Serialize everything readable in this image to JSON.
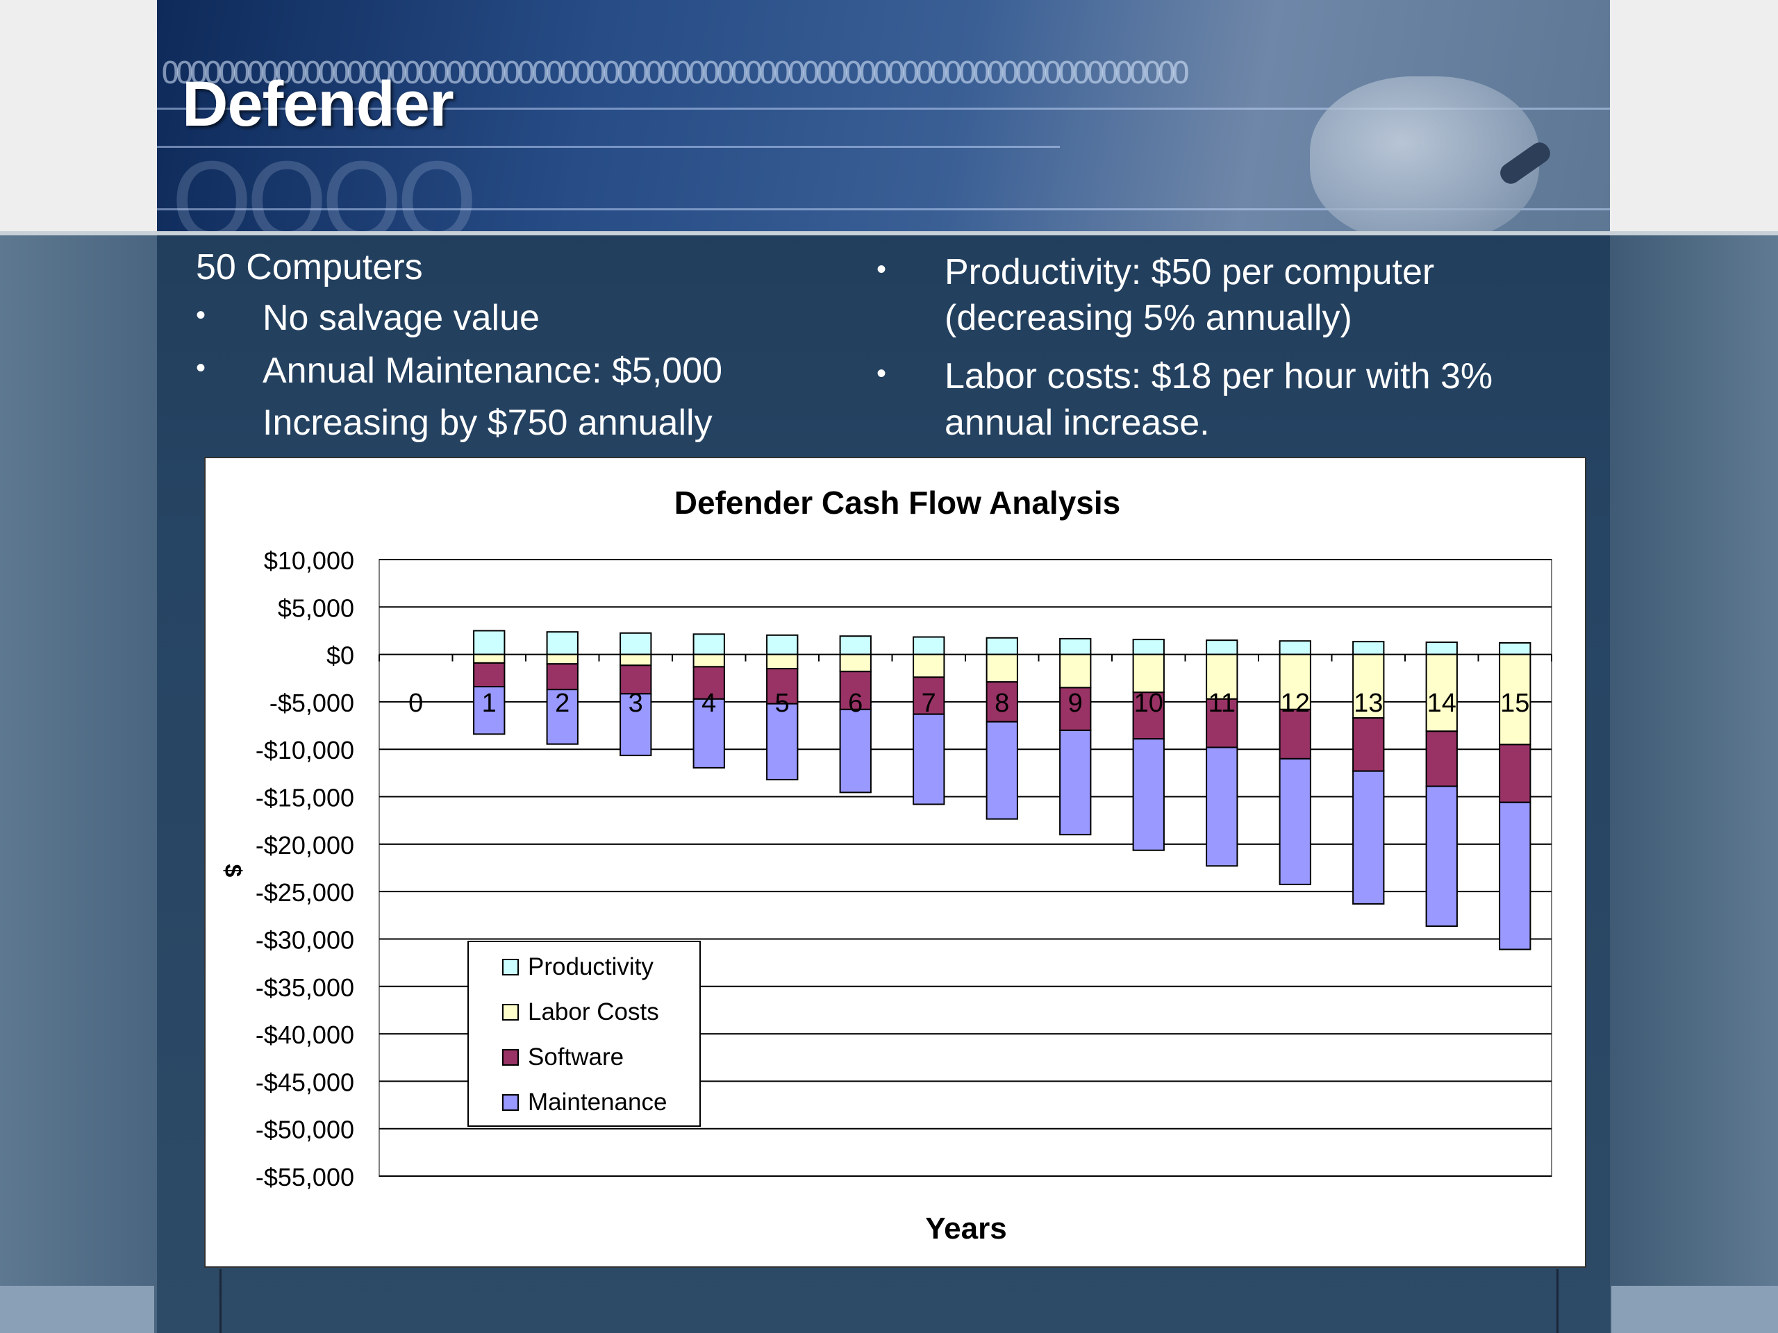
{
  "slide": {
    "title": "Defender",
    "left_heading": "50 Computers",
    "left_bullets": [
      "No salvage value",
      "Annual Maintenance: $5,000",
      "Increasing by $750 annually"
    ],
    "right_bullets": [
      [
        "Productivity: $50 per computer",
        "(decreasing 5% annually)"
      ],
      [
        "Labor costs: $18 per hour with 3%",
        "annual increase."
      ]
    ],
    "bullet_glyph": "•"
  },
  "chart_data": {
    "type": "bar",
    "stacked": true,
    "title": "Defender Cash Flow Analysis",
    "xlabel": "Years",
    "ylabel": "$",
    "ylim": [
      -55000,
      10000
    ],
    "yticks": [
      10000,
      5000,
      0,
      -5000,
      -10000,
      -15000,
      -20000,
      -25000,
      -30000,
      -35000,
      -40000,
      -45000,
      -50000,
      -55000
    ],
    "ytick_labels": [
      "$10,000",
      "$5,000",
      "$0",
      "-$5,000",
      "-$10,000",
      "-$15,000",
      "-$20,000",
      "-$25,000",
      "-$30,000",
      "-$35,000",
      "-$40,000",
      "-$45,000",
      "-$50,000",
      "-$55,000"
    ],
    "categories": [
      "0",
      "1",
      "2",
      "3",
      "4",
      "5",
      "6",
      "7",
      "8",
      "9",
      "10",
      "11",
      "12",
      "13",
      "14",
      "15"
    ],
    "grid": true,
    "legend_position": "bottom-left",
    "series": [
      {
        "name": "Productivity",
        "color": "#ccffff",
        "values": [
          0,
          2500,
          2375,
          2256,
          2143,
          2036,
          1934,
          1838,
          1746,
          1658,
          1576,
          1497,
          1422,
          1351,
          1283,
          1219
        ]
      },
      {
        "name": "Labor Costs",
        "color": "#ffffcc",
        "values": [
          0,
          -900,
          -1000,
          -1150,
          -1300,
          -1500,
          -1800,
          -2400,
          -2900,
          -3500,
          -4000,
          -4700,
          -5800,
          -6700,
          -8100,
          -9500
        ]
      },
      {
        "name": "Software",
        "color": "#993366",
        "values": [
          0,
          -2500,
          -2700,
          -3000,
          -3400,
          -3700,
          -4000,
          -3900,
          -4200,
          -4500,
          -4900,
          -5100,
          -5200,
          -5600,
          -5800,
          -6100
        ]
      },
      {
        "name": "Maintenance",
        "color": "#9999ff",
        "values": [
          0,
          -5000,
          -5750,
          -6500,
          -7250,
          -8000,
          -8750,
          -9500,
          -10250,
          -11000,
          -11750,
          -12500,
          -13250,
          -14000,
          -14750,
          -15500
        ]
      }
    ]
  }
}
